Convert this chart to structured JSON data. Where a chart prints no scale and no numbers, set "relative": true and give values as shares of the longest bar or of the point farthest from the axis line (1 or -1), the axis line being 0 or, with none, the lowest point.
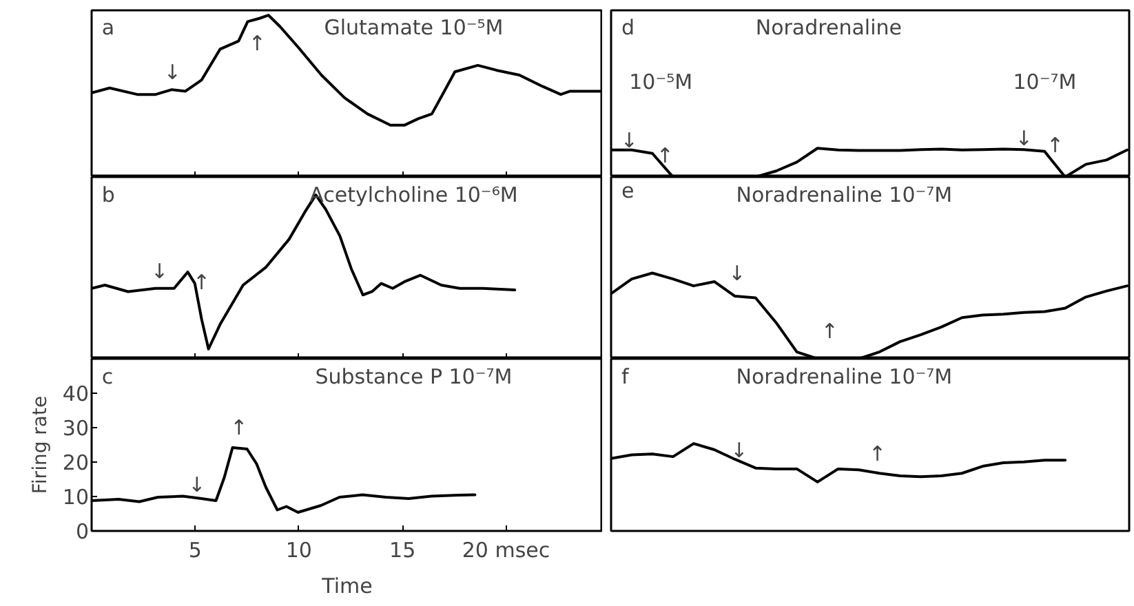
{
  "chart_data": [
    {
      "type": "line",
      "title": "Glutamate 10⁻⁵M",
      "relative": true,
      "color": "#000000",
      "tick_labels": false,
      "xlim": [
        0,
        24.67
      ],
      "xticks": [
        5,
        10,
        15,
        20
      ],
      "x": [
        0,
        0.87,
        2.2,
        3.09,
        3.87,
        4.53,
        5.31,
        6.2,
        7.09,
        7.53,
        8.09,
        8.53,
        9.09,
        9.98,
        11.09,
        12.2,
        13.31,
        14.42,
        15.09,
        15.76,
        16.42,
        16.98,
        17.53,
        18.64,
        19.53,
        20.64,
        21.76,
        22.64,
        23.09,
        24.6
      ],
      "values": [
        0.52,
        0.55,
        0.51,
        0.51,
        0.54,
        0.53,
        0.6,
        0.79,
        0.84,
        0.96,
        0.98,
        1.0,
        0.93,
        0.8,
        0.63,
        0.49,
        0.39,
        0.32,
        0.32,
        0.36,
        0.39,
        0.52,
        0.65,
        0.69,
        0.66,
        0.63,
        0.56,
        0.51,
        0.53,
        0.53
      ],
      "annotations": [
        "a",
        "↓",
        "↑"
      ]
    },
    {
      "type": "line",
      "title": "Acetylcholine 10⁻⁶M",
      "relative": true,
      "color": "#000000",
      "tick_labels": false,
      "xlim": [
        0,
        24.67
      ],
      "xticks": [
        5,
        10,
        15,
        20
      ],
      "x": [
        0,
        0.64,
        1.76,
        3.09,
        3.98,
        4.64,
        4.98,
        5.31,
        5.64,
        6.2,
        7.31,
        8.42,
        9.53,
        10.31,
        10.82,
        11.31,
        11.98,
        12.53,
        13.09,
        13.53,
        13.98,
        14.53,
        15.09,
        15.87,
        16.87,
        17.76,
        18.87,
        20.42
      ],
      "values": [
        0.43,
        0.45,
        0.41,
        0.43,
        0.43,
        0.53,
        0.46,
        0.24,
        0.06,
        0.21,
        0.45,
        0.56,
        0.73,
        0.9,
        1.0,
        0.91,
        0.75,
        0.55,
        0.39,
        0.41,
        0.46,
        0.43,
        0.47,
        0.51,
        0.45,
        0.43,
        0.43,
        0.42
      ],
      "annotations": [
        "b",
        "↓",
        "↑"
      ]
    },
    {
      "type": "line",
      "title": "Substance P 10⁻⁷M",
      "xlabel": "Time",
      "ylabel": "Firing rate",
      "color": "#000000",
      "xlim": [
        0,
        24.67
      ],
      "xticks": [
        5,
        10,
        15,
        {
          "value": 20,
          "label": "20 msec"
        }
      ],
      "ylim": [
        0,
        50
      ],
      "yticks": [
        0,
        10,
        20,
        30,
        40
      ],
      "x": [
        0,
        1.3,
        2.3,
        3.2,
        4.4,
        5.3,
        6.0,
        6.4,
        6.8,
        7.5,
        7.96,
        8.4,
        8.96,
        9.4,
        9.96,
        11.07,
        11.96,
        13.07,
        14.2,
        15.3,
        16.4,
        17.7,
        18.5
      ],
      "values": [
        8.8,
        9.2,
        8.5,
        9.8,
        10.1,
        9.4,
        8.8,
        15.5,
        24.2,
        23.8,
        19.5,
        12.8,
        6.1,
        7.1,
        5.4,
        7.4,
        9.8,
        10.5,
        9.8,
        9.4,
        10.1,
        10.4,
        10.5
      ],
      "annotations": [
        "c",
        "↓",
        "↑"
      ]
    },
    {
      "type": "line",
      "title": "Noradrenaline",
      "relative": true,
      "color": "#000000",
      "categories": [
        null,
        null,
        null,
        null,
        null,
        null,
        null,
        null,
        null,
        null,
        null,
        null,
        null,
        null,
        null,
        null,
        null,
        null,
        null,
        null,
        null,
        null,
        null,
        null,
        null,
        null
      ],
      "values": [
        0.94,
        0.94,
        0.82,
        0,
        0,
        0,
        0,
        0,
        0.21,
        0.52,
        1.0,
        0.94,
        0.92,
        0.92,
        0.92,
        0.95,
        0.97,
        0.94,
        0.95,
        0.97,
        0.95,
        0.89,
        0,
        0.44,
        0.59,
        0.94
      ],
      "annotations": [
        "d",
        "10⁻⁵M",
        "10⁻⁷M",
        "↓",
        "↑",
        "↓",
        "↑"
      ]
    },
    {
      "type": "line",
      "title": "Noradrenaline 10⁻⁷M",
      "relative": true,
      "color": "#000000",
      "categories": [
        null,
        null,
        null,
        null,
        null,
        null,
        null,
        null,
        null,
        null,
        null,
        null,
        null,
        null,
        null,
        null,
        null,
        null,
        null,
        null,
        null,
        null,
        null,
        null,
        null,
        null
      ],
      "values": [
        0.76,
        0.93,
        1.0,
        0.93,
        0.85,
        0.9,
        0.73,
        0.71,
        0.42,
        0.08,
        0,
        0,
        0,
        0.08,
        0.2,
        0.28,
        0.37,
        0.48,
        0.51,
        0.52,
        0.54,
        0.55,
        0.59,
        0.72,
        0.79,
        0.85
      ],
      "annotations": [
        "e",
        "↓",
        "↑"
      ]
    },
    {
      "type": "line",
      "title": "Noradrenaline 10⁻⁷M",
      "relative": true,
      "color": "#000000",
      "categories": [
        null,
        null,
        null,
        null,
        null,
        null,
        null,
        null,
        null,
        null,
        null,
        null,
        null,
        null,
        null,
        null,
        null,
        null,
        null,
        null,
        null,
        null,
        null,
        null,
        null,
        null
      ],
      "values": [
        0.83,
        0.87,
        0.88,
        0.85,
        1.0,
        0.93,
        0.82,
        0.72,
        0.71,
        0.71,
        0.56,
        0.71,
        0.7,
        0.66,
        0.63,
        0.62,
        0.63,
        0.66,
        0.74,
        0.78,
        0.79,
        0.81,
        0.81,
        null,
        null,
        null
      ],
      "annotations": [
        "f",
        "↓",
        "↑"
      ]
    }
  ]
}
